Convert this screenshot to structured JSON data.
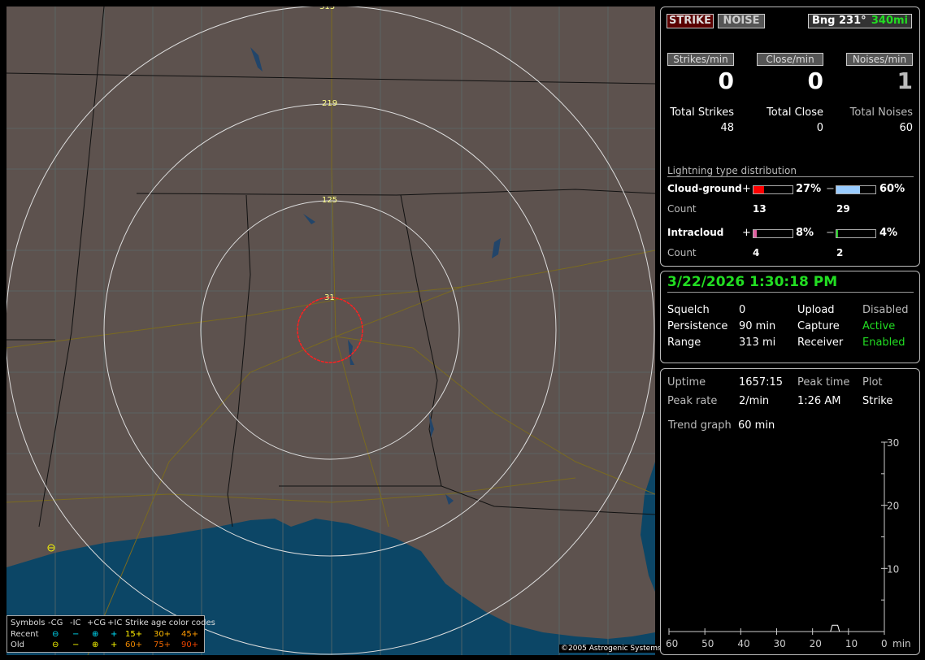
{
  "map": {
    "ring_labels": [
      "313",
      "219",
      "125",
      "31"
    ],
    "copyright": "©2005 Astrogenic Systems",
    "legend": {
      "symbols_label": "Symbols",
      "cols": [
        "-CG",
        "-IC",
        "+CG",
        "+IC"
      ],
      "recent_label": "Recent",
      "old_label": "Old",
      "recent_symbols": [
        "⊖",
        "−",
        "⊕",
        "+"
      ],
      "old_symbols": [
        "⊖",
        "−",
        "⊕",
        "+"
      ],
      "age_title": "Strike age color codes",
      "recent_ages": [
        "15+",
        "30+",
        "45+"
      ],
      "old_ages": [
        "60+",
        "75+",
        "90+"
      ],
      "recent_color": "#00e5ff",
      "old_color": "#ffff00"
    }
  },
  "top": {
    "strike_button": "STRIKE",
    "noise_button": "NOISE",
    "bearing": "Bng 231°",
    "distance": "340mi",
    "rates": [
      {
        "label": "Strikes/min",
        "value": "0"
      },
      {
        "label": "Close/min",
        "value": "0"
      },
      {
        "label": "Noises/min",
        "value": "1"
      }
    ],
    "totals": [
      {
        "label": "Total Strikes",
        "value": "48"
      },
      {
        "label": "Total Close",
        "value": "0"
      },
      {
        "label": "Total Noises",
        "value": "60"
      }
    ],
    "distribution": {
      "title": "Lightning type distribution",
      "cg_label": "Cloud-ground",
      "ic_label": "Intracloud",
      "count_label": "Count",
      "plus": "+",
      "minus": "−",
      "cg_pos_pct": "27%",
      "cg_pos_value": 27,
      "cg_pos_count": "13",
      "cg_pos_color": "#ff0000",
      "cg_neg_pct": "60%",
      "cg_neg_value": 60,
      "cg_neg_count": "29",
      "cg_neg_color": "#99ccff",
      "ic_pos_pct": "8%",
      "ic_pos_value": 8,
      "ic_pos_count": "4",
      "ic_pos_color": "#e060a0",
      "ic_neg_pct": "4%",
      "ic_neg_value": 4,
      "ic_neg_count": "2",
      "ic_neg_color": "#22cc22"
    }
  },
  "status": {
    "datetime": "3/22/2026 1:30:18 PM",
    "rows": [
      {
        "k1": "Squelch",
        "v1": "0",
        "k2": "Upload",
        "v2": "Disabled"
      },
      {
        "k1": "Persistence",
        "v1": "90 min",
        "k2": "Capture",
        "v2": "Active"
      },
      {
        "k1": "Range",
        "v1": "313 mi",
        "k2": "Receiver",
        "v2": "Enabled"
      }
    ]
  },
  "stats": {
    "uptime_label": "Uptime",
    "uptime": "1657:15",
    "peak_time_label": "Peak time",
    "plot_label": "Plot",
    "peak_rate_label": "Peak rate",
    "peak_rate": "2/min",
    "peak_time": "1:26 AM",
    "plot": "Strike",
    "trend_label": "Trend graph",
    "trend_value": "60 min"
  },
  "chart_data": {
    "type": "line",
    "x_ticks": [
      "60",
      "50",
      "40",
      "30",
      "20",
      "10",
      "0"
    ],
    "x_unit": "min",
    "y_ticks": [
      "30",
      "20",
      "10"
    ],
    "xlim": [
      60,
      0
    ],
    "ylim": [
      0,
      30
    ],
    "x": [
      15,
      14.5,
      14,
      13.5,
      13,
      12.5
    ],
    "y": [
      0,
      1,
      1,
      1,
      1,
      0
    ]
  }
}
